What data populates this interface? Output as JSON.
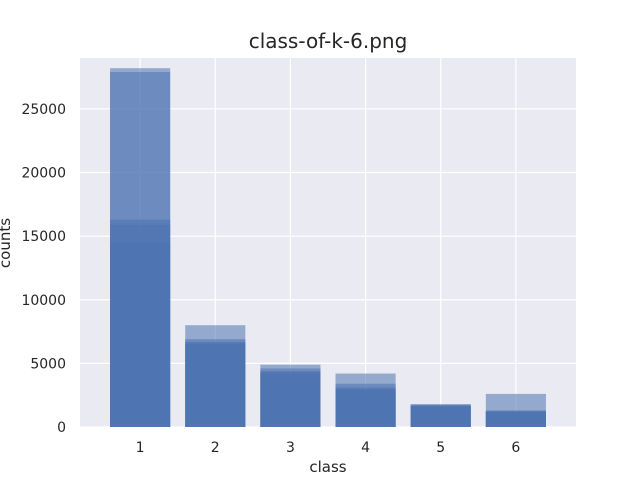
{
  "chart_data": {
    "type": "bar",
    "title": "class-of-k-6.png",
    "xlabel": "class",
    "ylabel": "counts",
    "categories": [
      "1",
      "2",
      "3",
      "4",
      "5",
      "6"
    ],
    "ylim": [
      0,
      29000
    ],
    "yticks": [
      0,
      5000,
      10000,
      15000,
      20000,
      25000
    ],
    "grid": true,
    "bar_color": "#4c72b0",
    "series": [
      {
        "values": [
          28200,
          8000,
          4900,
          4200,
          1800,
          2600
        ]
      },
      {
        "values": [
          27900,
          6900,
          4600,
          3400,
          1750,
          1300
        ]
      },
      {
        "values": [
          16300,
          6700,
          4400,
          3100,
          1700,
          1250
        ]
      },
      {
        "values": [
          15900,
          6600,
          4300,
          3000,
          1650,
          1200
        ]
      },
      {
        "values": [
          14500,
          6500,
          4200,
          2900,
          1600,
          1150
        ]
      }
    ]
  }
}
